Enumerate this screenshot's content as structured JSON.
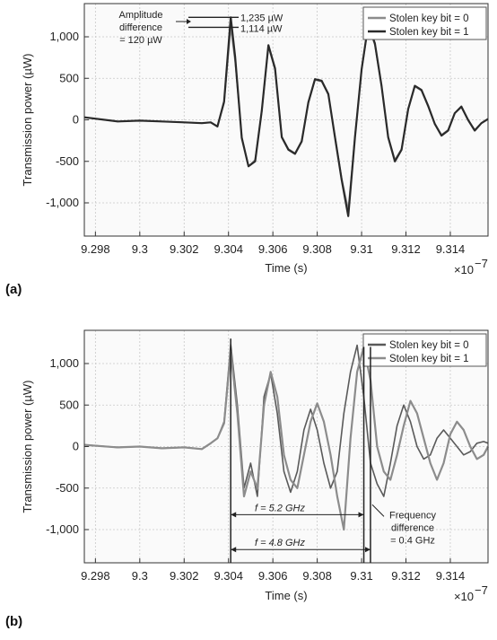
{
  "chart_data": [
    {
      "type": "line",
      "panel_label": "(a)",
      "xlabel": "Time (s)",
      "x_multiplier": "×10",
      "x_exponent": "−7",
      "ylabel": "Transmission power (µW)",
      "xlim": [
        9.2975,
        9.3157
      ],
      "ylim": [
        -1400,
        1400
      ],
      "x_ticks": [
        9.298,
        9.3,
        9.302,
        9.304,
        9.306,
        9.308,
        9.31,
        9.312,
        9.314
      ],
      "x_tick_labels": [
        "9.298",
        "9.3",
        "9.302",
        "9.304",
        "9.306",
        "9.308",
        "9.31",
        "9.312",
        "9.314"
      ],
      "y_ticks": [
        -1000,
        -500,
        0,
        500,
        1000
      ],
      "y_tick_labels": [
        "-1,000",
        "-500",
        "0",
        "500",
        "1,000"
      ],
      "grid": true,
      "legend_position": "top-right",
      "series": [
        {
          "name": "Stolen key bit = 0",
          "color": "#8c8c8c",
          "x": [
            9.2975,
            9.299,
            9.3,
            9.301,
            9.302,
            9.3028,
            9.3032,
            9.3035,
            9.3038,
            9.3041,
            9.3043,
            9.3046,
            9.3049,
            9.3052,
            9.3055,
            9.3058,
            9.3061,
            9.3064,
            9.3067,
            9.307,
            9.3073,
            9.3076,
            9.3079,
            9.3082,
            9.3085,
            9.3088,
            9.3091,
            9.3094,
            9.3097,
            9.31,
            9.3103,
            9.3106,
            9.3109,
            9.3112,
            9.3115,
            9.3118,
            9.3121,
            9.3124,
            9.3127,
            9.313,
            9.3133,
            9.3136,
            9.3139,
            9.3142,
            9.3145,
            9.3148,
            9.3151,
            9.3154,
            9.3157
          ],
          "y": [
            30,
            -20,
            -10,
            -20,
            -30,
            -40,
            -30,
            -80,
            200,
            1114,
            700,
            -200,
            -560,
            -480,
            100,
            880,
            600,
            -200,
            -350,
            -400,
            -250,
            200,
            480,
            460,
            300,
            -200,
            -700,
            -1080,
            -200,
            600,
            1130,
            900,
            400,
            -200,
            -480,
            -350,
            120,
            400,
            350,
            160,
            -50,
            -180,
            -120,
            80,
            150,
            0,
            -120,
            -40,
            10
          ]
        },
        {
          "name": "Stolen key bit = 1",
          "color": "#2a2a2a",
          "x": [
            9.2975,
            9.299,
            9.3,
            9.301,
            9.302,
            9.3028,
            9.3032,
            9.3035,
            9.3038,
            9.3041,
            9.3043,
            9.3046,
            9.3049,
            9.3052,
            9.3055,
            9.3058,
            9.3061,
            9.3064,
            9.3067,
            9.307,
            9.3073,
            9.3076,
            9.3079,
            9.3082,
            9.3085,
            9.3088,
            9.3091,
            9.3094,
            9.3097,
            9.31,
            9.3103,
            9.3106,
            9.3109,
            9.3112,
            9.3115,
            9.3118,
            9.3121,
            9.3124,
            9.3127,
            9.313,
            9.3133,
            9.3136,
            9.3139,
            9.3142,
            9.3145,
            9.3148,
            9.3151,
            9.3154,
            9.3157
          ],
          "y": [
            30,
            -20,
            -10,
            -20,
            -30,
            -40,
            -30,
            -80,
            220,
            1235,
            760,
            -220,
            -560,
            -500,
            110,
            900,
            620,
            -210,
            -360,
            -410,
            -260,
            210,
            490,
            470,
            310,
            -210,
            -720,
            -1160,
            -220,
            610,
            1150,
            920,
            410,
            -210,
            -500,
            -360,
            130,
            410,
            360,
            170,
            -50,
            -190,
            -130,
            80,
            160,
            0,
            -130,
            -40,
            10
          ]
        }
      ],
      "annotations": {
        "amp_line1": "Amplitude",
        "amp_line2": "difference",
        "amp_line3": "= 120 µW",
        "val_high": "1,235 µW",
        "val_low": "1,114 µW"
      }
    },
    {
      "type": "line",
      "panel_label": "(b)",
      "xlabel": "Time (s)",
      "x_multiplier": "×10",
      "x_exponent": "−7",
      "ylabel": "Transmission power (µW)",
      "xlim": [
        9.2975,
        9.3157
      ],
      "ylim": [
        -1400,
        1400
      ],
      "x_ticks": [
        9.298,
        9.3,
        9.302,
        9.304,
        9.306,
        9.308,
        9.31,
        9.312,
        9.314
      ],
      "x_tick_labels": [
        "9.298",
        "9.3",
        "9.302",
        "9.304",
        "9.306",
        "9.308",
        "9.31",
        "9.312",
        "9.314"
      ],
      "y_ticks": [
        -1000,
        -500,
        0,
        500,
        1000
      ],
      "y_tick_labels": [
        "-1,000",
        "-500",
        "0",
        "500",
        "1,000"
      ],
      "grid": true,
      "legend_position": "top-right",
      "series": [
        {
          "name": "Stolen key bit = 0",
          "color": "#5a5a5a",
          "x": [
            9.2975,
            9.299,
            9.3,
            9.301,
            9.302,
            9.3028,
            9.3032,
            9.3035,
            9.3038,
            9.3041,
            9.3044,
            9.3047,
            9.305,
            9.3053,
            9.3056,
            9.3059,
            9.3062,
            9.3065,
            9.3068,
            9.3071,
            9.3074,
            9.3077,
            9.308,
            9.3083,
            9.3086,
            9.3089,
            9.3092,
            9.3095,
            9.3098,
            9.3101,
            9.3104,
            9.3107,
            9.311,
            9.3113,
            9.3116,
            9.3119,
            9.3122,
            9.3125,
            9.3128,
            9.3131,
            9.3134,
            9.3137,
            9.314,
            9.3143,
            9.3146,
            9.3149,
            9.3152,
            9.3155,
            9.3157
          ],
          "y": [
            20,
            -10,
            0,
            -20,
            -10,
            -30,
            40,
            100,
            300,
            1230,
            500,
            -500,
            -200,
            -600,
            600,
            880,
            400,
            -300,
            -550,
            -300,
            200,
            450,
            200,
            -200,
            -500,
            -300,
            400,
            900,
            1220,
            600,
            -200,
            -450,
            -600,
            -200,
            250,
            500,
            300,
            0,
            -150,
            -100,
            100,
            200,
            100,
            0,
            -100,
            -60,
            40,
            60,
            40
          ]
        },
        {
          "name": "Stolen key bit = 1",
          "color": "#8c8c8c",
          "x": [
            9.2975,
            9.299,
            9.3,
            9.301,
            9.302,
            9.3028,
            9.3032,
            9.3035,
            9.3038,
            9.3041,
            9.3044,
            9.3047,
            9.305,
            9.3053,
            9.3056,
            9.3059,
            9.3062,
            9.3065,
            9.3068,
            9.3071,
            9.3074,
            9.3077,
            9.308,
            9.3083,
            9.3086,
            9.3089,
            9.3092,
            9.3095,
            9.3098,
            9.3101,
            9.3104,
            9.3107,
            9.311,
            9.3113,
            9.3116,
            9.3119,
            9.3122,
            9.3125,
            9.3128,
            9.3131,
            9.3134,
            9.3137,
            9.314,
            9.3143,
            9.3146,
            9.3149,
            9.3152,
            9.3155,
            9.3157
          ],
          "y": [
            20,
            -10,
            0,
            -20,
            -10,
            -30,
            40,
            100,
            280,
            1150,
            400,
            -600,
            -300,
            -500,
            500,
            900,
            600,
            -100,
            -400,
            -500,
            -100,
            300,
            520,
            300,
            -100,
            -600,
            -1000,
            100,
            900,
            1200,
            800,
            0,
            -300,
            -400,
            -100,
            250,
            550,
            400,
            100,
            -200,
            -400,
            -200,
            150,
            300,
            200,
            0,
            -150,
            -100,
            0
          ]
        }
      ],
      "annotations": {
        "f1": "f = 5.2 GHz",
        "f2": "f = 4.8 GHz",
        "freq_line1": "Frequency",
        "freq_line2": "difference",
        "freq_line3": "= 0.4 GHz"
      }
    }
  ]
}
